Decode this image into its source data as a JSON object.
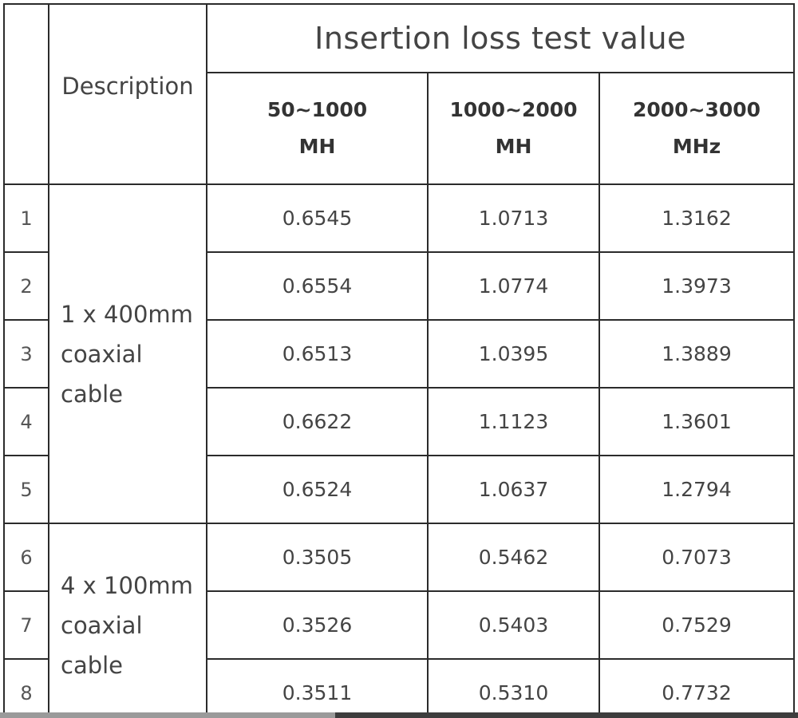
{
  "table": {
    "title": "Insertion loss test value",
    "description_header": "Description",
    "ranges": [
      {
        "line1": "50~1000",
        "line2": "MH"
      },
      {
        "line1": "1000~2000",
        "line2": "MH"
      },
      {
        "line1": "2000~3000",
        "line2": "MHz"
      }
    ],
    "groups": [
      {
        "line1": "1 x 400mm",
        "line2": "coaxial cable"
      },
      {
        "line1": "4 x 100mm",
        "line2": "coaxial cable"
      }
    ],
    "rows": [
      {
        "index": "1",
        "values": [
          "0.6545",
          "1.0713",
          "1.3162"
        ]
      },
      {
        "index": "2",
        "values": [
          "0.6554",
          "1.0774",
          "1.3973"
        ]
      },
      {
        "index": "3",
        "values": [
          "0.6513",
          "1.0395",
          "1.3889"
        ]
      },
      {
        "index": "4",
        "values": [
          "0.6622",
          "1.1123",
          "1.3601"
        ]
      },
      {
        "index": "5",
        "values": [
          "0.6524",
          "1.0637",
          "1.2794"
        ]
      },
      {
        "index": "6",
        "values": [
          "0.3505",
          "0.5462",
          "0.7073"
        ]
      },
      {
        "index": "7",
        "values": [
          "0.3526",
          "0.5403",
          "0.7529"
        ]
      },
      {
        "index": "8",
        "values": [
          "0.3511",
          "0.5310",
          "0.7732"
        ]
      }
    ]
  }
}
